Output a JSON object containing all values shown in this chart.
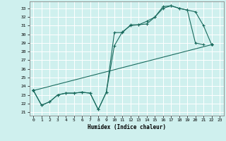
{
  "bg_color": "#cff0ee",
  "grid_color": "#ffffff",
  "line_color": "#1a6b5e",
  "xlabel": "Humidex (Indice chaleur)",
  "xlim": [
    -0.5,
    23.5
  ],
  "ylim": [
    20.6,
    33.8
  ],
  "yticks": [
    21,
    22,
    23,
    24,
    25,
    26,
    27,
    28,
    29,
    30,
    31,
    32,
    33
  ],
  "xticks": [
    0,
    1,
    2,
    3,
    4,
    5,
    6,
    7,
    8,
    9,
    10,
    11,
    12,
    13,
    14,
    15,
    16,
    17,
    18,
    19,
    20,
    21,
    22,
    23
  ],
  "line1_x": [
    0,
    1,
    2,
    3,
    4,
    5,
    6,
    7,
    8,
    9,
    10,
    11,
    12,
    13,
    14,
    15,
    16,
    17,
    18,
    19,
    20,
    21,
    22
  ],
  "line1_y": [
    23.5,
    21.8,
    22.2,
    23.0,
    23.2,
    23.2,
    23.3,
    23.2,
    21.3,
    23.3,
    30.2,
    30.2,
    31.1,
    31.1,
    31.2,
    32.0,
    33.2,
    33.3,
    33.0,
    32.8,
    32.6,
    31.0,
    28.8
  ],
  "line2_x": [
    0,
    1,
    2,
    3,
    4,
    5,
    6,
    7,
    8,
    9,
    10,
    11,
    12,
    13,
    14,
    15,
    16,
    17,
    18,
    19,
    20,
    21
  ],
  "line2_y": [
    23.5,
    21.8,
    22.2,
    23.0,
    23.2,
    23.2,
    23.3,
    23.2,
    21.3,
    23.3,
    28.7,
    30.3,
    31.0,
    31.1,
    31.5,
    32.0,
    33.0,
    33.3,
    33.0,
    32.8,
    29.0,
    28.8
  ],
  "line3_x": [
    0,
    22
  ],
  "line3_y": [
    23.5,
    28.8
  ],
  "figwidth": 3.2,
  "figheight": 2.0,
  "dpi": 100
}
